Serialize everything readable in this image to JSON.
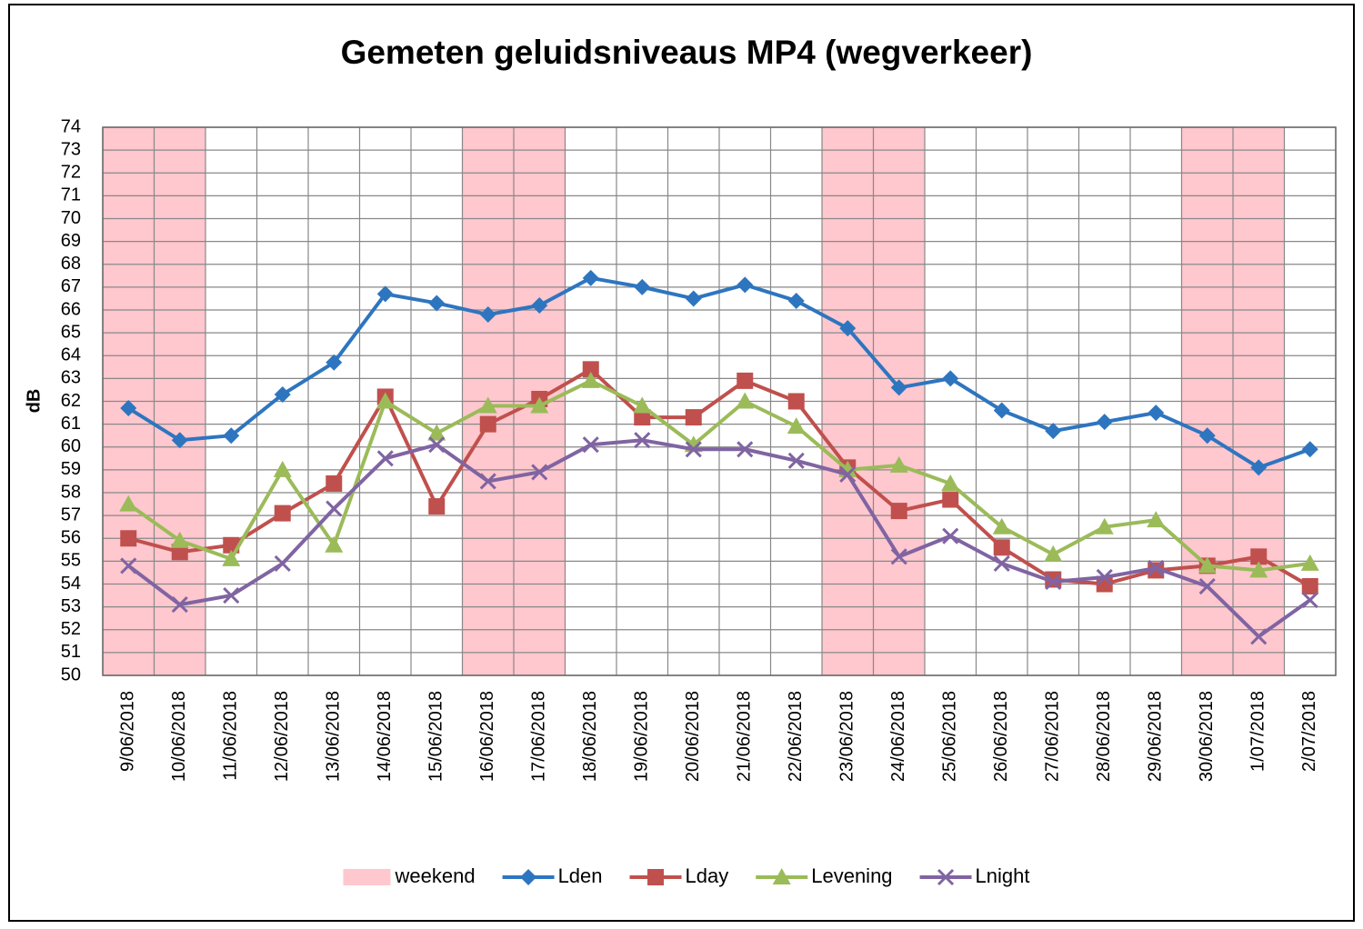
{
  "chart_data": {
    "type": "line",
    "title": "Gemeten geluidsniveaus MP4 (wegverkeer)",
    "y_label": "dB",
    "categories": [
      "9/06/2018",
      "10/06/2018",
      "11/06/2018",
      "12/06/2018",
      "13/06/2018",
      "14/06/2018",
      "15/06/2018",
      "16/06/2018",
      "17/06/2018",
      "18/06/2018",
      "19/06/2018",
      "20/06/2018",
      "21/06/2018",
      "22/06/2018",
      "23/06/2018",
      "24/06/2018",
      "25/06/2018",
      "26/06/2018",
      "27/06/2018",
      "28/06/2018",
      "29/06/2018",
      "30/06/2018",
      "1/07/2018",
      "2/07/2018"
    ],
    "series": [
      {
        "name": "weekend",
        "type": "bar",
        "color": "#ffc7ce",
        "values": [
          74,
          74,
          null,
          null,
          null,
          null,
          null,
          74,
          74,
          null,
          null,
          null,
          null,
          null,
          74,
          74,
          null,
          null,
          null,
          null,
          null,
          74,
          74,
          null
        ]
      },
      {
        "name": "Lden",
        "color": "#2e75c0",
        "marker": "diamond",
        "values": [
          61.7,
          60.3,
          60.5,
          62.3,
          63.7,
          66.7,
          66.3,
          65.8,
          66.2,
          67.4,
          67.0,
          66.5,
          67.1,
          66.4,
          65.2,
          62.6,
          63.0,
          61.6,
          60.7,
          61.1,
          61.5,
          60.5,
          59.1,
          59.9
        ]
      },
      {
        "name": "Lday",
        "color": "#c0504d",
        "marker": "square",
        "values": [
          56.0,
          55.4,
          55.7,
          57.1,
          58.4,
          62.2,
          57.4,
          61.0,
          62.1,
          63.4,
          61.3,
          61.3,
          62.9,
          62.0,
          59.1,
          57.2,
          57.7,
          55.6,
          54.2,
          54.0,
          54.6,
          54.8,
          55.2,
          53.9
        ]
      },
      {
        "name": "Levening",
        "color": "#9bbb59",
        "marker": "triangle",
        "values": [
          57.5,
          55.9,
          55.1,
          59.0,
          55.7,
          62.0,
          60.6,
          61.8,
          61.8,
          62.9,
          61.8,
          60.1,
          62.0,
          60.9,
          59.0,
          59.2,
          58.4,
          56.5,
          55.3,
          56.5,
          56.8,
          54.8,
          54.6,
          54.9
        ]
      },
      {
        "name": "Lnight",
        "color": "#8064a2",
        "marker": "x",
        "values": [
          54.8,
          53.1,
          53.5,
          54.9,
          57.3,
          59.5,
          60.1,
          58.5,
          58.9,
          60.1,
          60.3,
          59.9,
          59.9,
          59.4,
          58.8,
          55.2,
          56.1,
          54.9,
          54.1,
          54.3,
          54.7,
          53.9,
          51.7,
          53.3
        ]
      }
    ],
    "ylim": [
      50,
      74
    ],
    "yticks": [
      50,
      51,
      52,
      53,
      54,
      55,
      56,
      57,
      58,
      59,
      60,
      61,
      62,
      63,
      64,
      65,
      66,
      67,
      68,
      69,
      70,
      71,
      72,
      73,
      74
    ],
    "grid": true,
    "legend": "bottom"
  }
}
